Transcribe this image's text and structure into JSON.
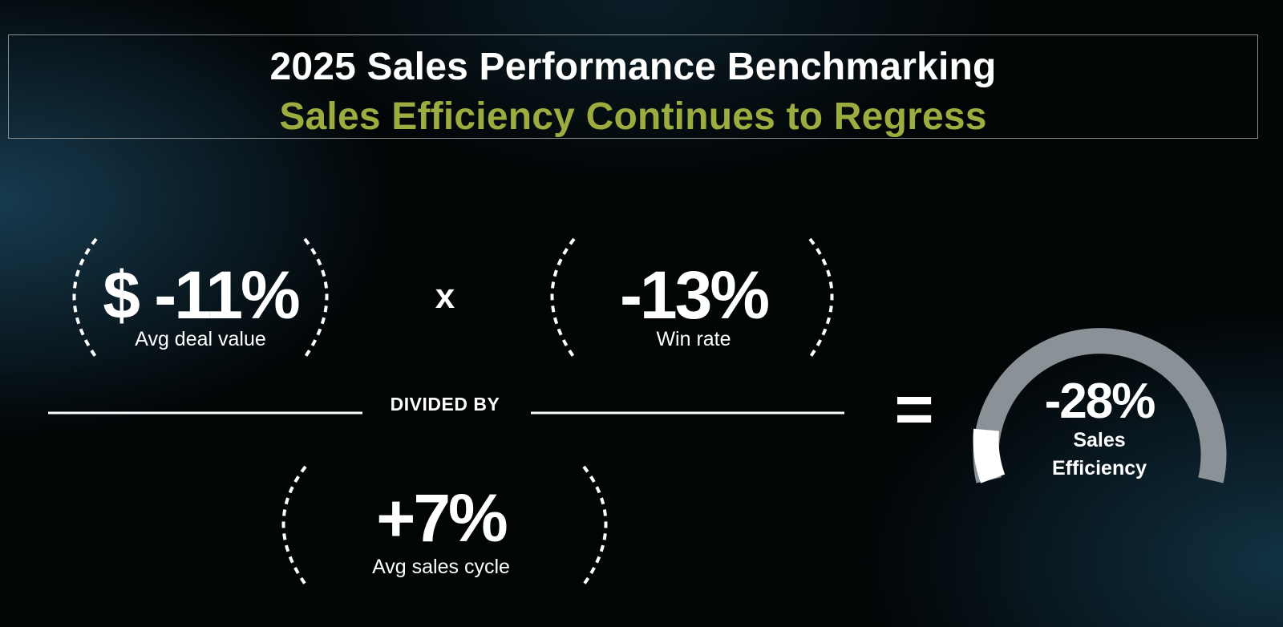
{
  "header": {
    "title": "2025 Sales Performance Benchmarking",
    "subtitle": "Sales Efficiency Continues to Regress"
  },
  "metrics": {
    "deal_value": {
      "value": "$ -11%",
      "label": "Avg deal value"
    },
    "win_rate": {
      "value": "-13%",
      "label": "Win rate"
    },
    "sales_cycle": {
      "value": "+7%",
      "label": "Avg sales cycle"
    }
  },
  "operators": {
    "multiply": "x",
    "divided_by": "DIVIDED BY",
    "equals": "="
  },
  "result": {
    "value": "-28%",
    "label_line1": "Sales",
    "label_line2": "Efficiency",
    "gauge_fraction": 0.1
  },
  "colors": {
    "background": "#020506",
    "accent": "#9cac3e",
    "text": "#ffffff",
    "gauge_track": "#8a9297",
    "gauge_fill": "#ffffff",
    "title_border": "#8a8f90"
  }
}
